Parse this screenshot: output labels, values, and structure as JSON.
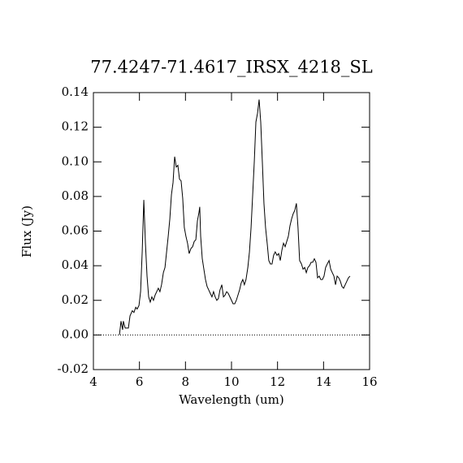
{
  "chart_data": {
    "type": "line",
    "title": "77.4247-71.4617_IRSX_4218_SL",
    "x_label": "Wavelength (um)",
    "y_label": "Flux (Jy)",
    "xlim": [
      4,
      16
    ],
    "xticks": [
      4,
      6,
      8,
      10,
      12,
      14,
      16
    ],
    "ylim": [
      -0.02,
      0.14
    ],
    "yticks": [
      -0.02,
      {
        "value": 0,
        "label": "0.00"
      },
      0.02,
      0.04,
      0.06,
      0.08,
      {
        "value": 0.1,
        "label": "0.10"
      },
      0.12,
      0.14
    ],
    "zero_line": true,
    "series": [
      {
        "color": "#000000",
        "x": [
          5.13,
          5.2,
          5.27,
          5.3,
          5.38,
          5.45,
          5.52,
          5.59,
          5.69,
          5.76,
          5.84,
          5.9,
          5.98,
          6.05,
          6.12,
          6.19,
          6.26,
          6.33,
          6.4,
          6.47,
          6.54,
          6.61,
          6.68,
          6.75,
          6.82,
          6.89,
          6.96,
          7.04,
          7.11,
          7.18,
          7.25,
          7.32,
          7.39,
          7.46,
          7.53,
          7.6,
          7.67,
          7.74,
          7.81,
          7.88,
          7.95,
          8.02,
          8.09,
          8.16,
          8.24,
          8.31,
          8.38,
          8.45,
          8.52,
          8.59,
          8.62,
          8.66,
          8.73,
          8.8,
          8.87,
          8.94,
          9.01,
          9.08,
          9.15,
          9.22,
          9.29,
          9.36,
          9.43,
          9.5,
          9.58,
          9.65,
          9.72,
          9.79,
          9.86,
          9.93,
          10.0,
          10.07,
          10.14,
          10.21,
          10.28,
          10.35,
          10.42,
          10.49,
          10.56,
          10.63,
          10.71,
          10.78,
          10.85,
          10.92,
          10.99,
          11.06,
          11.13,
          11.2,
          11.27,
          11.34,
          11.41,
          11.48,
          11.55,
          11.62,
          11.69,
          11.76,
          11.83,
          11.9,
          11.98,
          12.05,
          12.12,
          12.19,
          12.26,
          12.33,
          12.4,
          12.47,
          12.54,
          12.61,
          12.68,
          12.75,
          12.82,
          12.89,
          12.96,
          13.04,
          13.11,
          13.18,
          13.25,
          13.32,
          13.39,
          13.46,
          13.53,
          13.6,
          13.67,
          13.74,
          13.81,
          13.88,
          13.95,
          14.02,
          14.09,
          14.16,
          14.24,
          14.31,
          14.38,
          14.45,
          14.52,
          14.59,
          14.66,
          14.73,
          14.8,
          14.87,
          14.94,
          15.01,
          15.08,
          15.15
        ],
        "values": [
          0.0,
          0.008,
          0.003,
          0.008,
          0.004,
          0.004,
          0.004,
          0.011,
          0.014,
          0.013,
          0.016,
          0.015,
          0.017,
          0.025,
          0.048,
          0.078,
          0.053,
          0.034,
          0.022,
          0.019,
          0.022,
          0.02,
          0.023,
          0.025,
          0.027,
          0.025,
          0.029,
          0.036,
          0.039,
          0.048,
          0.057,
          0.067,
          0.081,
          0.088,
          0.103,
          0.097,
          0.098,
          0.09,
          0.089,
          0.079,
          0.062,
          0.057,
          0.053,
          0.047,
          0.05,
          0.051,
          0.054,
          0.055,
          0.066,
          0.071,
          0.074,
          0.057,
          0.044,
          0.038,
          0.032,
          0.028,
          0.026,
          0.024,
          0.022,
          0.025,
          0.022,
          0.02,
          0.021,
          0.026,
          0.029,
          0.022,
          0.023,
          0.025,
          0.024,
          0.022,
          0.02,
          0.018,
          0.018,
          0.02,
          0.023,
          0.026,
          0.03,
          0.032,
          0.029,
          0.032,
          0.039,
          0.048,
          0.062,
          0.081,
          0.1,
          0.123,
          0.128,
          0.136,
          0.123,
          0.1,
          0.076,
          0.062,
          0.053,
          0.043,
          0.041,
          0.041,
          0.046,
          0.048,
          0.046,
          0.047,
          0.043,
          0.049,
          0.053,
          0.051,
          0.054,
          0.057,
          0.063,
          0.067,
          0.07,
          0.072,
          0.076,
          0.062,
          0.043,
          0.041,
          0.038,
          0.039,
          0.036,
          0.039,
          0.04,
          0.042,
          0.042,
          0.044,
          0.042,
          0.033,
          0.034,
          0.032,
          0.032,
          0.034,
          0.039,
          0.041,
          0.043,
          0.038,
          0.036,
          0.034,
          0.029,
          0.034,
          0.033,
          0.031,
          0.028,
          0.027,
          0.029,
          0.031,
          0.033,
          0.034
        ]
      }
    ]
  }
}
